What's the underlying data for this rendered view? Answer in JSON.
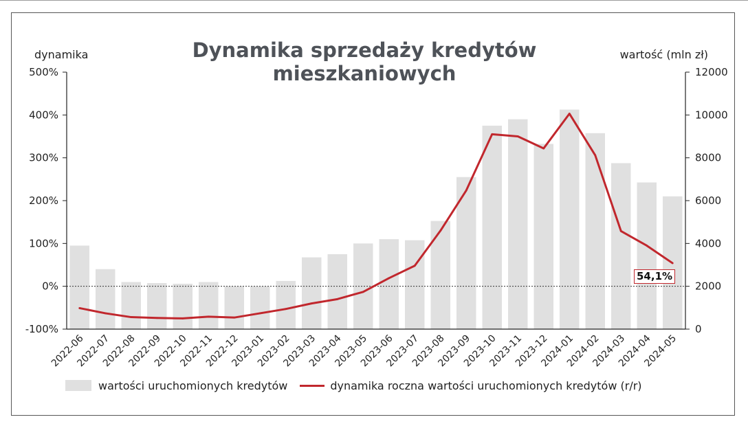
{
  "chart_data": {
    "type": "bar+line",
    "title": "Dynamika sprzedaży kredytów mieszkaniowych",
    "ylabel_left": "dynamika",
    "ylabel_right": "wartość (mln zł)",
    "categories": [
      "2022-06",
      "2022-07",
      "2022-08",
      "2022-09",
      "2022-10",
      "2022-11",
      "2022-12",
      "2023-01",
      "2023-02",
      "2023-03",
      "2023-04",
      "2023-05",
      "2023-06",
      "2023-07",
      "2023-08",
      "2023-09",
      "2023-10",
      "2023-11",
      "2023-12",
      "2024-01",
      "2024-02",
      "2024-03",
      "2024-04",
      "2024-05"
    ],
    "series": [
      {
        "name": "wartości uruchomionych kredytów",
        "axis": "right",
        "kind": "bar",
        "color": "#e0e0e0",
        "values": [
          3900,
          2800,
          2200,
          2150,
          2120,
          2200,
          2000,
          2000,
          2250,
          3350,
          3500,
          4000,
          4200,
          4150,
          5050,
          7100,
          9500,
          9800,
          8650,
          10250,
          9150,
          7750,
          6850,
          6200
        ]
      },
      {
        "name": "dynamika roczna wartości uruchomionych kredytów (r/r)",
        "axis": "left",
        "kind": "line",
        "color": "#c1272d",
        "values": [
          -51,
          -63,
          -72,
          -74,
          -75,
          -71,
          -73,
          -63,
          -53,
          -40,
          -30,
          -13,
          19,
          48,
          130,
          224,
          355,
          350,
          322,
          403,
          306,
          129,
          95,
          54.1
        ]
      }
    ],
    "ylim_left": [
      -100,
      500
    ],
    "yticks_left": [
      "-100%",
      "0%",
      "100%",
      "200%",
      "300%",
      "400%",
      "500%"
    ],
    "ylim_right": [
      0,
      12000
    ],
    "yticks_right": [
      "0",
      "2000",
      "4000",
      "6000",
      "8000",
      "10000",
      "12000"
    ],
    "annotation": "54,1%"
  }
}
